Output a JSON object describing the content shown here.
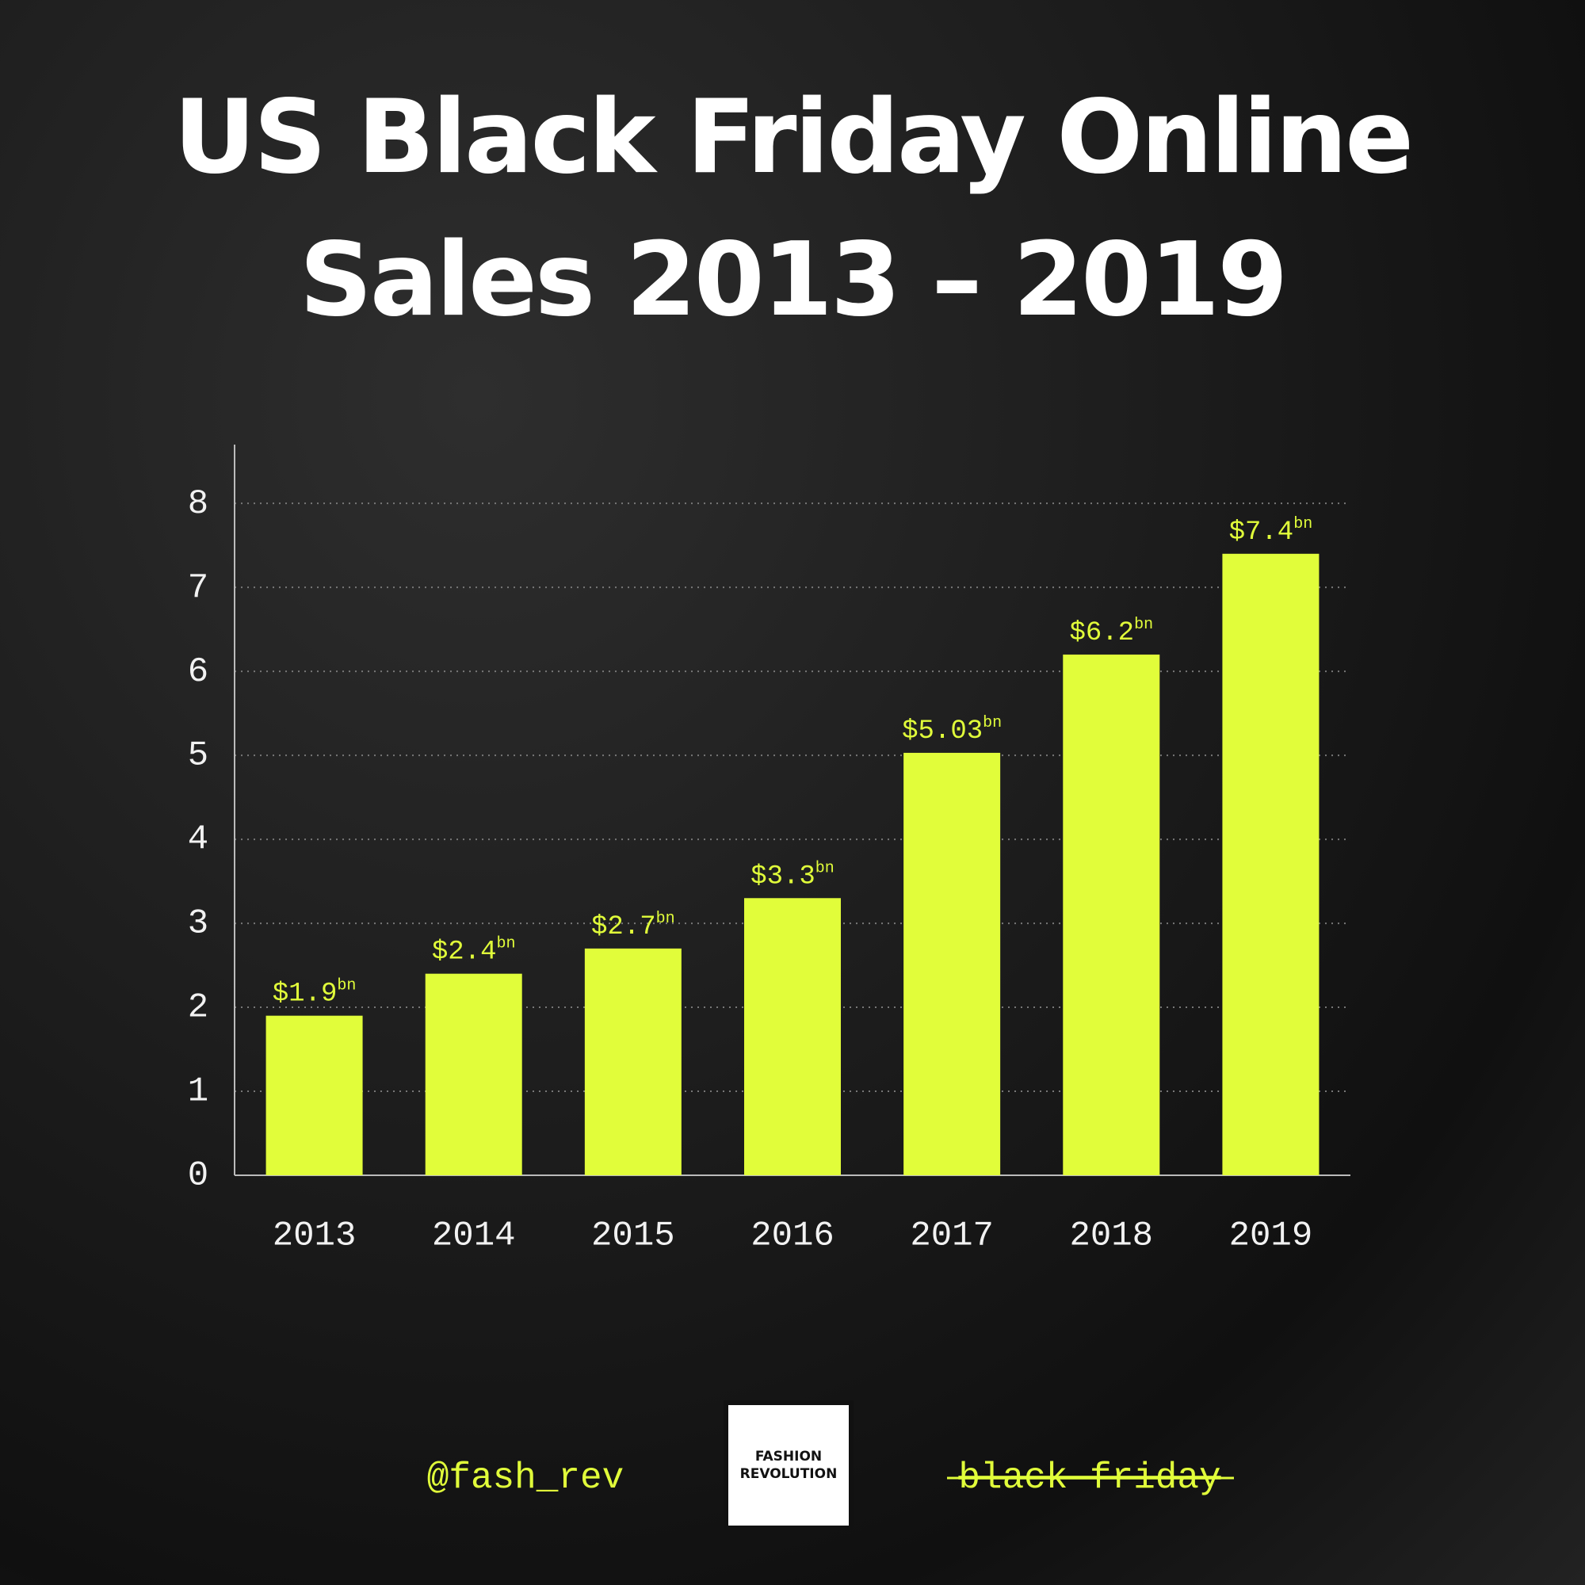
{
  "chart_data": {
    "type": "bar",
    "title": [
      "US Black Friday Online",
      "Sales 2013 – 2019"
    ],
    "categories": [
      "2013",
      "2014",
      "2015",
      "2016",
      "2017",
      "2018",
      "2019"
    ],
    "values": [
      1.9,
      2.4,
      2.7,
      3.3,
      5.03,
      6.2,
      7.4
    ],
    "value_labels": [
      "$1.9",
      "$2.4",
      "$2.7",
      "$3.3",
      "$5.03",
      "$6.2",
      "$7.4"
    ],
    "value_label_suffix": "bn",
    "color": "#e1fd3a",
    "ylim": [
      0,
      8.7
    ],
    "yticks": [
      0,
      1,
      2,
      3,
      4,
      5,
      6,
      7,
      8
    ],
    "grid": true
  },
  "footer": {
    "handle": "@fash_rev",
    "logo": [
      "FASHION",
      "REVOLUTION"
    ],
    "tag": "black friday"
  }
}
